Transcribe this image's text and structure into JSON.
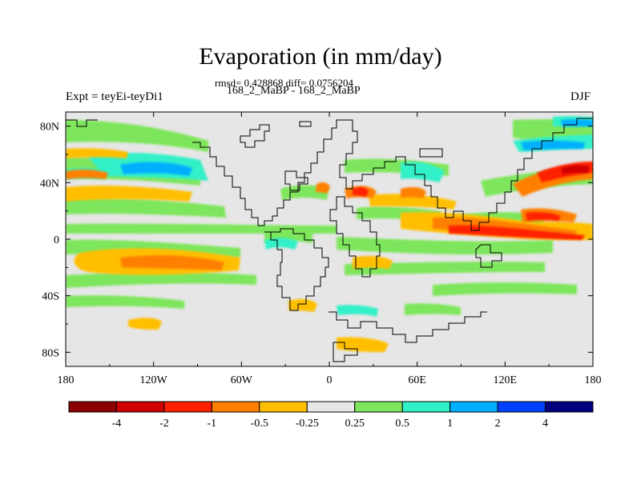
{
  "title": "Evaporation (in mm/day)",
  "stats_line": "rmsd= 0.428868 diff= 0.0756204",
  "experiment_name": "168_2_MaBP - 168_2_MaBP",
  "left_label": "Expt = teyEi-teyDi1",
  "right_label": "DJF",
  "map": {
    "x_tick_labels": [
      "180",
      "120W",
      "60W",
      "0",
      "60E",
      "120E",
      "180"
    ],
    "y_tick_labels": [
      "80N",
      "40N",
      "0",
      "40S",
      "80S"
    ],
    "background_color": "#e6e6e6",
    "coastline_color": "#000000"
  },
  "colorbar": {
    "labels": [
      "-4",
      "-2",
      "-1",
      "-0.5",
      "-0.25",
      "0.25",
      "0.5",
      "1",
      "2",
      "4"
    ],
    "colors": [
      "#8b0000",
      "#d00000",
      "#ff2000",
      "#ff8000",
      "#ffbf00",
      "#e6e6e6",
      "#7ee65c",
      "#30f0c8",
      "#00b0ff",
      "#0040ff",
      "#000080"
    ]
  }
}
